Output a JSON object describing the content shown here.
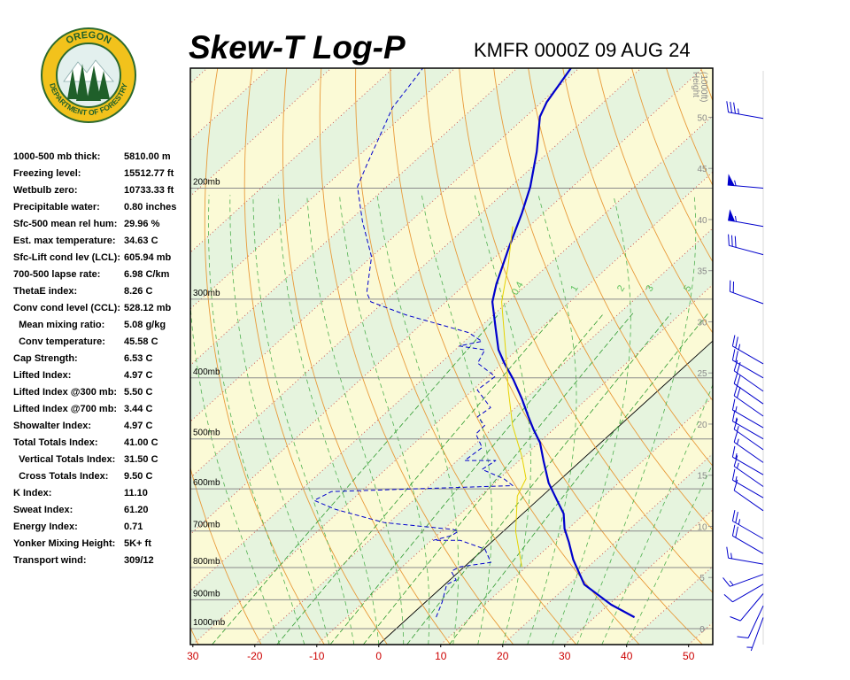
{
  "logo": {
    "top": "OREGON",
    "bottom": "DEPARTMENT OF FORESTRY"
  },
  "stats": [
    [
      "1000-500 mb thick:",
      "5810.00 m"
    ],
    [
      "Freezing level:",
      "15512.77 ft"
    ],
    [
      "Wetbulb zero:",
      "10733.33 ft"
    ],
    [
      "Precipitable water:",
      "0.80 inches"
    ],
    [
      "Sfc-500 mean rel hum:",
      "29.96 %"
    ],
    [
      "Est. max temperature:",
      "34.63 C"
    ],
    [
      "Sfc-Lift cond lev (LCL):",
      "605.94 mb"
    ],
    [
      "700-500 lapse rate:",
      "6.98 C/km"
    ],
    [
      "ThetaE index:",
      "8.26 C"
    ],
    [
      "Conv cond level (CCL):",
      "528.12 mb"
    ],
    [
      "  Mean mixing ratio:",
      "5.08 g/kg"
    ],
    [
      "  Conv temperature:",
      "45.58 C"
    ],
    [
      "Cap Strength:",
      "6.53 C"
    ],
    [
      "Lifted Index:",
      "4.97 C"
    ],
    [
      "Lifted Index @300 mb:",
      "5.50 C"
    ],
    [
      "Lifted Index @700 mb:",
      "3.44 C"
    ],
    [
      "Showalter Index:",
      "4.97 C"
    ],
    [
      "Total Totals Index:",
      "41.00 C"
    ],
    [
      "  Vertical Totals Index:",
      "31.50 C"
    ],
    [
      "  Cross Totals Index:",
      "9.50 C"
    ],
    [
      "K Index:",
      "11.10"
    ],
    [
      "Sweat Index:",
      "61.20"
    ],
    [
      "Energy Index:",
      "0.71"
    ],
    [
      "Yonker Mixing Height:",
      "5K+ ft"
    ],
    [
      "Transport wind:",
      "309/12"
    ]
  ],
  "chart_data": {
    "type": "skew-t",
    "title": "Skew-T Log-P",
    "subtitle": "KMFR 0000Z 09 AUG 24",
    "xlim": [
      -30.4,
      53.9
    ],
    "ylim": [
      1060,
      129
    ],
    "yscale": "log",
    "xticks": [
      {
        "value": -30,
        "label": "30"
      },
      -20,
      -10,
      0,
      10,
      20,
      30,
      40,
      50
    ],
    "yticks": [
      {
        "value": 200,
        "label": "200mb"
      },
      {
        "value": 300,
        "label": "300mb"
      },
      {
        "value": 400,
        "label": "400mb"
      },
      {
        "value": 500,
        "label": "500mb"
      },
      {
        "value": 600,
        "label": "600mb"
      },
      {
        "value": 700,
        "label": "700mb"
      },
      {
        "value": 800,
        "label": "800mb"
      },
      {
        "value": 900,
        "label": "900mb"
      },
      {
        "value": 1000,
        "label": "1000mb"
      }
    ],
    "y2label": [
      "Height",
      "(1000ft)"
    ],
    "y2lim": [
      -1.56,
      54.8
    ],
    "y2ticks": [
      0,
      5,
      10,
      15,
      20,
      25,
      30,
      35,
      40,
      45,
      50
    ],
    "mixing_ratios": [
      0.4,
      1,
      2,
      3,
      5,
      8
    ],
    "series": [
      {
        "color": "#0000cc",
        "linewidth": 2.2,
        "dashed": false,
        "pressure": [
          959,
          916,
          851,
          777,
          729,
          694,
          657,
          626,
          587,
          541,
          507,
          483,
          461,
          432,
          402,
          379,
          361,
          333,
          303,
          284,
          249,
          219,
          199,
          175,
          154,
          146,
          129
        ],
        "values": [
          36.4,
          30.4,
          22.5,
          16.3,
          12.5,
          9.4,
          6.6,
          3.2,
          -1.3,
          -6.1,
          -9.8,
          -13.2,
          -16.3,
          -20.5,
          -25.4,
          -29.7,
          -33.0,
          -37.4,
          -42.5,
          -45.0,
          -49.4,
          -53.5,
          -56.8,
          -62.0,
          -67.7,
          -69.2,
          -71.3
        ]
      },
      {
        "color": "#0000cc",
        "linewidth": 1,
        "dashed": true,
        "pressure": [
          959,
          908,
          851,
          837,
          811,
          798,
          785,
          748,
          724,
          724,
          712,
          701,
          696,
          679,
          647,
          626,
          606,
          593,
          578,
          559,
          541,
          541,
          516,
          491,
          476,
          461,
          446,
          418,
          398,
          379,
          361,
          356,
          350,
          339,
          318,
          303,
          293,
          257,
          226,
          199,
          183,
          158,
          149,
          139,
          129
        ],
        "values": [
          4.4,
          2.7,
          0.3,
          1.0,
          -1.3,
          -0.7,
          3.5,
          0.2,
          -5.4,
          -9.7,
          -7.6,
          -7.3,
          -8.4,
          -20.7,
          -30.9,
          -36.0,
          -34.8,
          -6.6,
          -9.3,
          -14.4,
          -13.8,
          -18.8,
          -18.3,
          -21.7,
          -21.8,
          -24.5,
          -24.0,
          -29.3,
          -28.8,
          -34.0,
          -35.2,
          -40.0,
          -37.2,
          -40.9,
          -54.0,
          -62.1,
          -64.4,
          -70.0,
          -77.7,
          -84.7,
          -87.2,
          -91.4,
          -93.1,
          -94.1,
          -95.2
        ]
      },
      {
        "color": "#e6d200",
        "linewidth": 1,
        "dashed": false,
        "pressure": [
          798,
          701,
          616,
          578,
          533,
          476,
          418,
          367,
          303,
          266,
          230
        ],
        "values": [
          9.3,
          2.0,
          -4.0,
          -5.7,
          -10.3,
          -17.3,
          -24.3,
          -31.0,
          -41.0,
          -46.3,
          -52.6
        ]
      }
    ],
    "winds": {
      "color": "#0000cc",
      "pressure": [
        155,
        200,
        230,
        255,
        305,
        380,
        400,
        420,
        440,
        460,
        480,
        500,
        520,
        545,
        570,
        595,
        620,
        650,
        720,
        760,
        790,
        820,
        850,
        880,
        920,
        960
      ],
      "direction": [
        280,
        275,
        280,
        285,
        290,
        300,
        300,
        305,
        305,
        305,
        300,
        300,
        305,
        305,
        300,
        305,
        300,
        305,
        300,
        300,
        280,
        250,
        240,
        220,
        205,
        200
      ],
      "speed": [
        35,
        55,
        55,
        30,
        20,
        25,
        20,
        20,
        20,
        20,
        15,
        15,
        15,
        15,
        15,
        15,
        15,
        10,
        25,
        20,
        15,
        15,
        10,
        10,
        10,
        5
      ]
    }
  }
}
